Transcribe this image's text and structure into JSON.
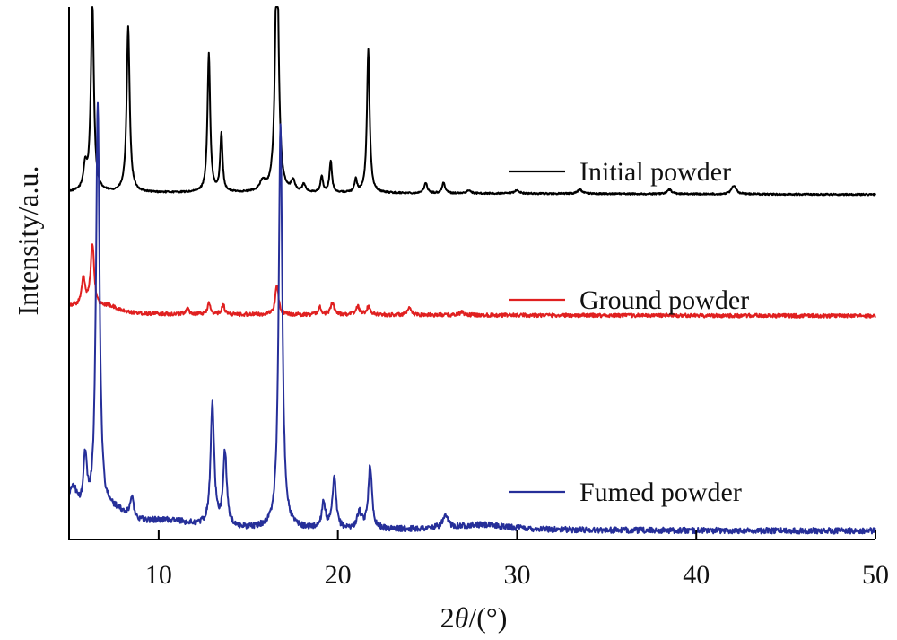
{
  "chart_data": {
    "type": "line",
    "title": "",
    "xlabel_prefix": "2",
    "xlabel_theta": "θ",
    "xlabel_suffix": "/(°)",
    "ylabel": "Intensity/a.u.",
    "xlim": [
      5,
      50
    ],
    "ylim": [
      0,
      100
    ],
    "y_ticks_shown": false,
    "grid": false,
    "legend_placement": "inline-right",
    "x_ticks": [
      {
        "value": 10,
        "label": "10"
      },
      {
        "value": 20,
        "label": "20"
      },
      {
        "value": 30,
        "label": "30"
      },
      {
        "value": 40,
        "label": "40"
      },
      {
        "value": 50,
        "label": "50"
      }
    ],
    "series": [
      {
        "name": "Initial powder",
        "color": "#000000",
        "baseline": 65.2,
        "baseline_end": 64.8,
        "noise": 0.15,
        "peaks": [
          [
            5.9,
            4.5,
            0.12
          ],
          [
            6.3,
            36,
            0.1
          ],
          [
            8.3,
            31,
            0.1
          ],
          [
            12.8,
            26,
            0.09
          ],
          [
            13.5,
            11,
            0.08
          ],
          [
            15.8,
            1.8,
            0.2
          ],
          [
            16.6,
            50,
            0.11
          ],
          [
            17.5,
            2.0,
            0.12
          ],
          [
            18.1,
            1.5,
            0.1
          ],
          [
            19.1,
            3.0,
            0.08
          ],
          [
            19.6,
            6.0,
            0.08
          ],
          [
            21.0,
            2.5,
            0.08
          ],
          [
            21.7,
            27,
            0.09
          ],
          [
            24.9,
            2.0,
            0.1
          ],
          [
            25.9,
            2.0,
            0.1
          ],
          [
            27.3,
            0.6,
            0.12
          ],
          [
            30.0,
            0.6,
            0.15
          ],
          [
            33.5,
            0.8,
            0.15
          ],
          [
            38.5,
            0.8,
            0.15
          ],
          [
            42.1,
            1.6,
            0.15
          ]
        ]
      },
      {
        "name": "Ground powder",
        "color": "#e02020",
        "baseline": 42.3,
        "baseline_end": 42.0,
        "noise": 0.35,
        "peaks": [
          [
            5.1,
            1.5,
            1.2
          ],
          [
            5.8,
            5.2,
            0.12
          ],
          [
            6.3,
            12,
            0.12
          ],
          [
            7.2,
            1.2,
            0.6
          ],
          [
            11.6,
            1.2,
            0.1
          ],
          [
            12.8,
            2.0,
            0.1
          ],
          [
            13.6,
            1.8,
            0.1
          ],
          [
            16.6,
            5.5,
            0.11
          ],
          [
            19.0,
            1.5,
            0.1
          ],
          [
            19.7,
            2.2,
            0.12
          ],
          [
            21.1,
            1.6,
            0.12
          ],
          [
            21.7,
            1.4,
            0.12
          ],
          [
            24.0,
            1.2,
            0.12
          ],
          [
            26.9,
            0.5,
            0.15
          ]
        ]
      },
      {
        "name": "Fumed powder",
        "color": "#262f99",
        "baseline": 1.8,
        "baseline_end": 1.6,
        "noise": 0.55,
        "peaks": [
          [
            5.2,
            7.0,
            0.35
          ],
          [
            5.9,
            10.5,
            0.13
          ],
          [
            6.6,
            78.0,
            0.12
          ],
          [
            7.5,
            3.0,
            0.9
          ],
          [
            8.5,
            4.0,
            0.12
          ],
          [
            10.5,
            1.5,
            1.8
          ],
          [
            13.0,
            23.0,
            0.12
          ],
          [
            13.7,
            14.0,
            0.12
          ],
          [
            16.8,
            76.0,
            0.12
          ],
          [
            19.2,
            5.0,
            0.12
          ],
          [
            19.8,
            9.5,
            0.12
          ],
          [
            21.2,
            3.0,
            0.15
          ],
          [
            21.8,
            12.0,
            0.12
          ],
          [
            26.0,
            2.0,
            0.2
          ],
          [
            28.0,
            1.0,
            2.0
          ]
        ]
      }
    ]
  }
}
